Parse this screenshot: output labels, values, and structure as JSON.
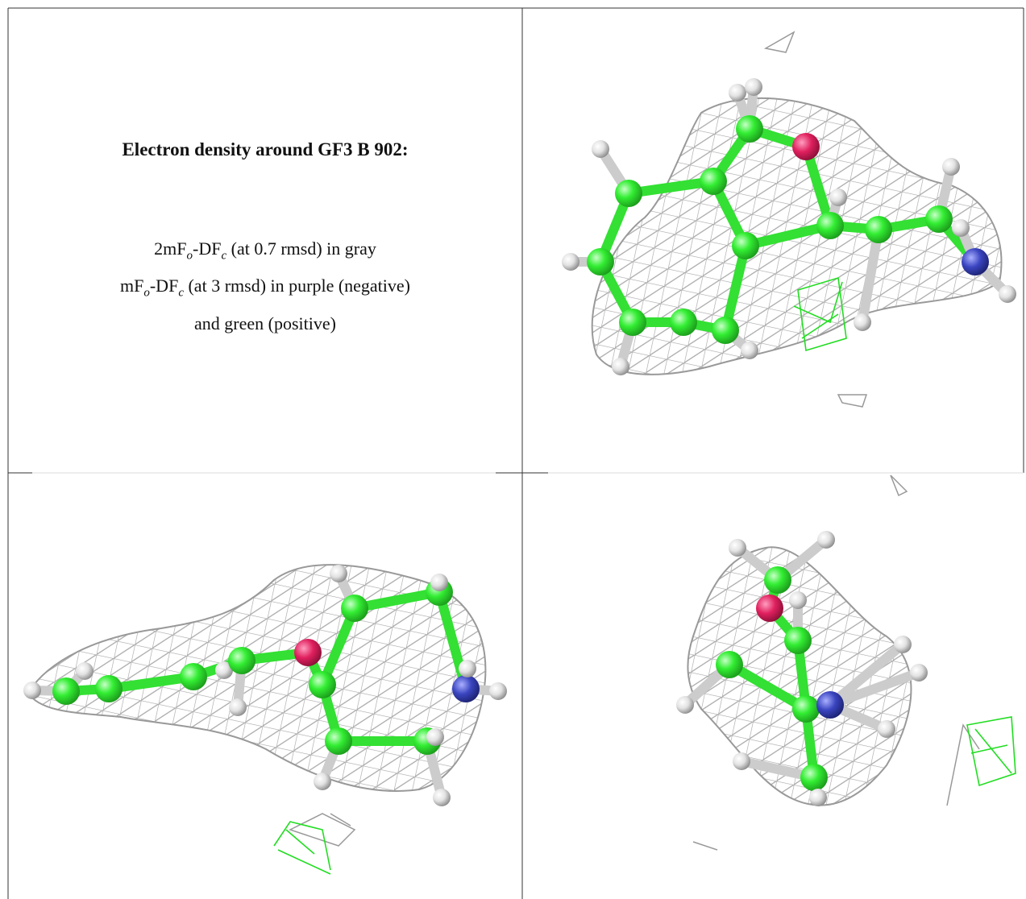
{
  "caption": {
    "title": "Electron density around GF3 B 902:",
    "lines": [
      [
        {
          "text": "2mF"
        },
        {
          "sub": "o"
        },
        {
          "text": "-DF"
        },
        {
          "sub": "c"
        },
        {
          "text": " (at 0.7 rmsd) in gray"
        }
      ],
      [
        {
          "text": "mF"
        },
        {
          "sub": "o"
        },
        {
          "text": "-DF"
        },
        {
          "sub": "c"
        },
        {
          "text": " (at 3 rmsd) in purple (negative)"
        }
      ],
      [
        {
          "text": "and green (positive)"
        }
      ]
    ]
  }
}
